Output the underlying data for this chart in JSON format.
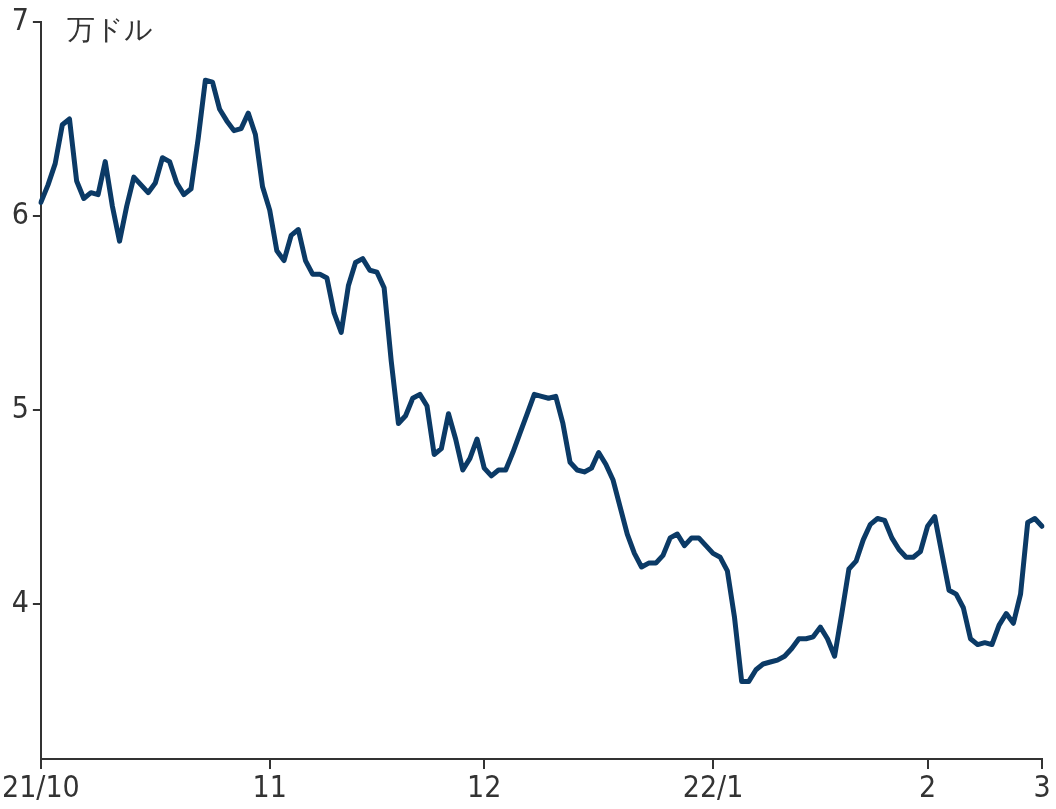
{
  "chart_data": {
    "type": "line",
    "ylabel": "万ドル",
    "categories": [
      "21/10",
      null,
      null,
      null,
      null,
      null,
      null,
      null,
      null,
      null,
      null,
      null,
      null,
      null,
      null,
      null,
      null,
      null,
      null,
      null,
      null,
      null,
      null,
      null,
      null,
      null,
      null,
      null,
      null,
      null,
      null,
      null,
      "11",
      null,
      null,
      null,
      null,
      null,
      null,
      null,
      null,
      null,
      null,
      null,
      null,
      null,
      null,
      null,
      null,
      null,
      null,
      null,
      null,
      null,
      null,
      null,
      null,
      null,
      null,
      null,
      null,
      null,
      "12",
      null,
      null,
      null,
      null,
      null,
      null,
      null,
      null,
      null,
      null,
      null,
      null,
      null,
      null,
      null,
      null,
      null,
      null,
      null,
      null,
      null,
      null,
      null,
      null,
      null,
      null,
      null,
      null,
      null,
      null,
      null,
      "22/1",
      null,
      null,
      null,
      null,
      null,
      null,
      null,
      null,
      null,
      null,
      null,
      null,
      null,
      null,
      null,
      null,
      null,
      null,
      null,
      null,
      null,
      null,
      null,
      null,
      null,
      null,
      null,
      null,
      null,
      "2",
      null,
      null,
      null,
      null,
      null,
      null,
      null,
      null,
      null,
      null,
      null,
      null,
      null,
      null,
      null,
      "3"
    ],
    "series": [
      {
        "color": "#0b3a66",
        "values": [
          6.07,
          6.16,
          6.27,
          6.47,
          6.5,
          6.18,
          6.09,
          6.12,
          6.11,
          6.28,
          6.05,
          5.87,
          6.05,
          6.2,
          6.16,
          6.12,
          6.17,
          6.3,
          6.28,
          6.17,
          6.11,
          6.14,
          6.4,
          6.7,
          6.69,
          6.55,
          6.49,
          6.44,
          6.45,
          6.53,
          6.42,
          6.15,
          6.03,
          5.82,
          5.77,
          5.9,
          5.93,
          5.77,
          5.7,
          5.7,
          5.68,
          5.5,
          5.4,
          5.64,
          5.76,
          5.78,
          5.72,
          5.71,
          5.63,
          5.25,
          4.93,
          4.97,
          5.06,
          5.08,
          5.02,
          4.77,
          4.8,
          4.98,
          4.85,
          4.69,
          4.75,
          4.85,
          4.7,
          4.66,
          4.69,
          4.69,
          4.78,
          4.88,
          4.98,
          5.08,
          5.07,
          5.06,
          5.07,
          4.93,
          4.73,
          4.69,
          4.68,
          4.7,
          4.78,
          4.72,
          4.64,
          4.5,
          4.36,
          4.26,
          4.19,
          4.21,
          4.21,
          4.25,
          4.34,
          4.36,
          4.3,
          4.34,
          4.34,
          4.3,
          4.26,
          4.24,
          4.17,
          3.93,
          3.6,
          3.6,
          3.66,
          3.69,
          3.7,
          3.71,
          3.73,
          3.77,
          3.82,
          3.82,
          3.83,
          3.88,
          3.82,
          3.73,
          3.95,
          4.18,
          4.22,
          4.33,
          4.41,
          4.44,
          4.43,
          4.34,
          4.28,
          4.24,
          4.24,
          4.27,
          4.4,
          4.45,
          4.26,
          4.07,
          4.05,
          3.98,
          3.82,
          3.79,
          3.8,
          3.79,
          3.89,
          3.95,
          3.9,
          4.05,
          4.42,
          4.44,
          4.4
        ]
      }
    ],
    "ylim": [
      3.2,
      7
    ],
    "yticks": [
      4,
      5,
      6,
      7
    ],
    "grid": false,
    "legend": false,
    "marker": "none",
    "line_style": "solid"
  }
}
